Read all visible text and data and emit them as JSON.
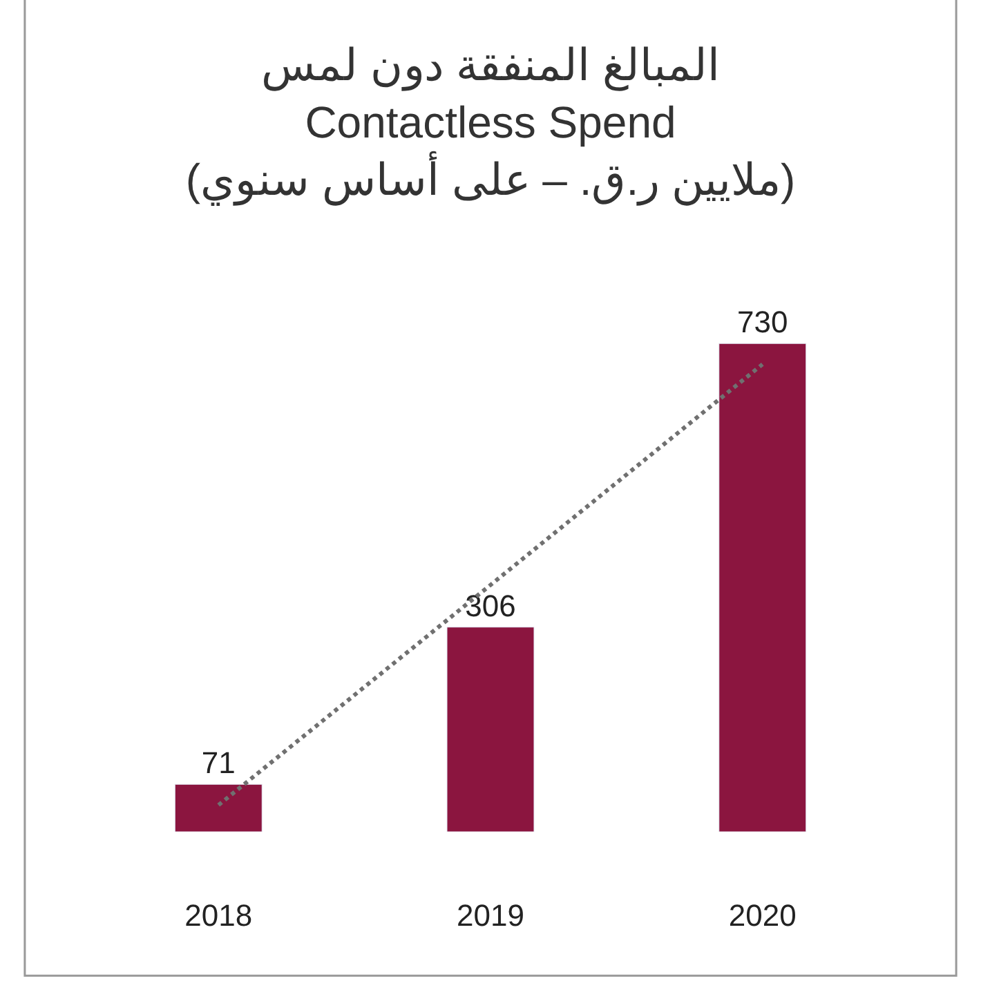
{
  "chart_data": {
    "type": "bar",
    "title": "المبالغ المنفقة دون لمس\nContactless Spend\n(ملايين ر.ق. – على أساس سنوي)",
    "categories": [
      "2018",
      "2019",
      "2020"
    ],
    "series": [
      {
        "color": "#8b153f",
        "values": [
          71,
          306,
          730
        ],
        "value_labels": [
          "71",
          "306",
          "730"
        ]
      },
      {
        "type": "line",
        "color": "#707070",
        "line_style": "dotted",
        "marker": "none",
        "values": [
          40,
          369,
          699
        ]
      }
    ],
    "legend": false,
    "tick_labels": "x"
  }
}
